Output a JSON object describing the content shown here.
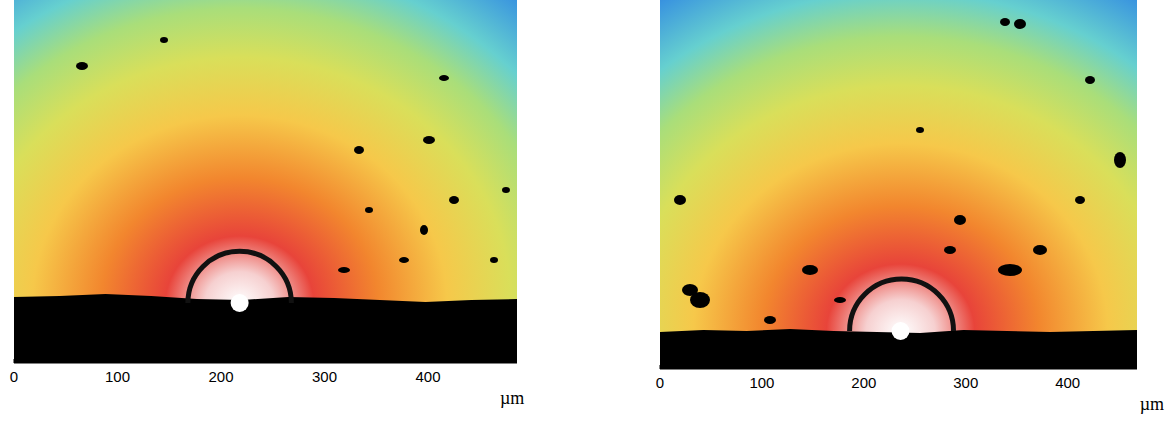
{
  "chart_data": [
    {
      "type": "image",
      "x_label": "µm",
      "xlim": [
        0,
        486
      ],
      "xticks": [
        0,
        100,
        200,
        300,
        400
      ],
      "tick_labels": "x",
      "arc": {
        "center": 218,
        "radius": 50
      },
      "dot": 218
    },
    {
      "type": "image",
      "x_label": "µm",
      "xlim": [
        0,
        468
      ],
      "xticks": [
        0,
        100,
        200,
        300,
        400
      ],
      "tick_labels": "x",
      "arc": {
        "center": 237,
        "radius": 51
      },
      "dot": 236
    }
  ]
}
